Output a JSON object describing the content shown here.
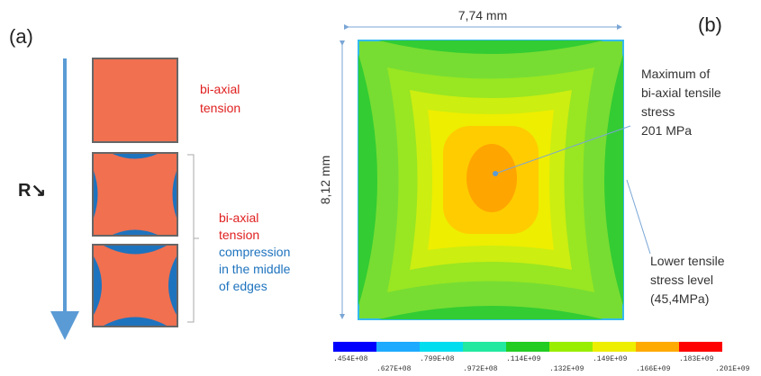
{
  "panel_a": {
    "label": "(a)",
    "axis_label": "R↘",
    "top_note": [
      "bi-axial",
      "tension"
    ],
    "bottom_note_red": [
      "bi-axial",
      "tension"
    ],
    "bottom_note_blue": [
      "compression",
      "in the middle",
      "of edges"
    ]
  },
  "panel_b": {
    "label": "(b)",
    "width_label": "7,74 mm",
    "height_label": "8,12 mm",
    "max_note": [
      "Maximum of",
      "bi-axial tensile",
      "stress",
      "201 MPa"
    ],
    "low_note": [
      "Lower tensile",
      "stress level",
      "(45,4MPa)"
    ],
    "colorbar_labels": [
      ".454E+08",
      ".627E+08",
      ".799E+08",
      ".972E+08",
      ".114E+09",
      ".132E+09",
      ".149E+09",
      ".166E+09",
      ".183E+09",
      ".201E+09"
    ]
  }
}
